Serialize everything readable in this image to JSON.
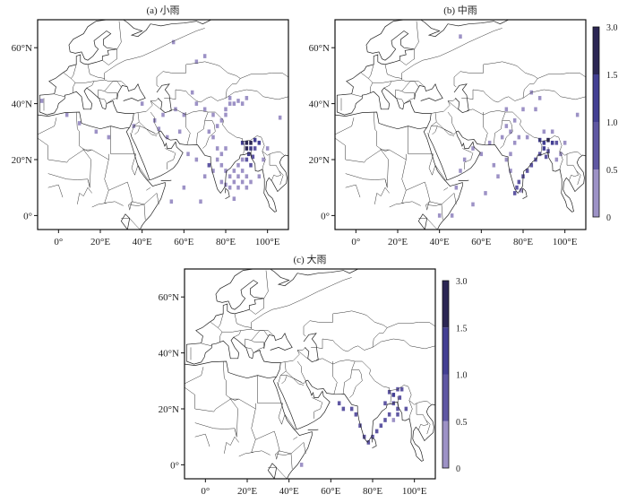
{
  "colorbar": {
    "bounds": [
      0,
      0.5,
      1.0,
      1.5,
      3.0
    ],
    "labels": [
      "0",
      "0.5",
      "1.0",
      "1.5",
      "3.0"
    ],
    "colors": [
      "#9d92c6",
      "#5f57a3",
      "#433f93",
      "#2b2654"
    ]
  },
  "axes": {
    "lon_range": [
      -10,
      110
    ],
    "lat_range": [
      -5,
      70
    ],
    "x_ticks": [
      0,
      20,
      40,
      60,
      80,
      100
    ],
    "x_tick_labels": [
      "0°",
      "20°E",
      "40°E",
      "60°E",
      "80°E",
      "100°E"
    ],
    "y_ticks": [
      0,
      20,
      40,
      60
    ],
    "y_tick_labels": [
      "0°",
      "20°N",
      "40°N",
      "60°N"
    ]
  },
  "panels": [
    {
      "title": "(a) 小雨",
      "cells": [
        [
          88,
          26,
          2
        ],
        [
          90,
          26,
          3
        ],
        [
          92,
          26,
          3
        ],
        [
          94,
          27,
          2
        ],
        [
          96,
          26,
          2
        ],
        [
          90,
          24,
          3
        ],
        [
          92,
          24,
          2
        ],
        [
          94,
          24,
          1
        ],
        [
          91,
          22,
          2
        ],
        [
          93,
          21,
          1
        ],
        [
          90,
          20,
          1
        ],
        [
          92,
          18,
          1
        ],
        [
          88,
          20,
          0
        ],
        [
          86,
          18,
          0
        ],
        [
          84,
          16,
          0
        ],
        [
          86,
          14,
          0
        ],
        [
          88,
          16,
          0
        ],
        [
          90,
          14,
          0
        ],
        [
          84,
          12,
          0
        ],
        [
          82,
          10,
          0
        ],
        [
          80,
          11,
          0
        ],
        [
          78,
          12,
          0
        ],
        [
          86,
          10,
          0
        ],
        [
          88,
          12,
          0
        ],
        [
          90,
          10,
          0
        ],
        [
          92,
          12,
          0
        ],
        [
          82,
          14,
          0
        ],
        [
          80,
          16,
          0
        ],
        [
          78,
          18,
          0
        ],
        [
          76,
          20,
          0
        ],
        [
          74,
          16,
          0
        ],
        [
          72,
          18,
          1
        ],
        [
          70,
          14,
          0
        ],
        [
          66,
          20,
          0
        ],
        [
          62,
          22,
          0
        ],
        [
          78,
          22,
          0
        ],
        [
          80,
          24,
          0
        ],
        [
          76,
          24,
          0
        ],
        [
          74,
          28,
          0
        ],
        [
          72,
          30,
          0
        ],
        [
          76,
          32,
          0
        ],
        [
          78,
          34,
          0
        ],
        [
          74,
          36,
          0
        ],
        [
          80,
          38,
          0
        ],
        [
          82,
          40,
          0
        ],
        [
          84,
          40,
          0
        ],
        [
          86,
          41,
          0
        ],
        [
          82,
          42,
          0
        ],
        [
          80,
          36,
          0
        ],
        [
          88,
          40,
          0
        ],
        [
          90,
          42,
          0
        ],
        [
          70,
          38,
          0
        ],
        [
          66,
          40,
          0
        ],
        [
          60,
          36,
          0
        ],
        [
          56,
          38,
          0
        ],
        [
          50,
          36,
          0
        ],
        [
          46,
          34,
          0
        ],
        [
          40,
          40,
          0
        ],
        [
          36,
          32,
          0
        ],
        [
          24,
          28,
          0
        ],
        [
          18,
          30,
          0
        ],
        [
          10,
          33,
          0
        ],
        [
          4,
          36,
          0
        ],
        [
          -8,
          41,
          0
        ],
        [
          55,
          62,
          0
        ],
        [
          66,
          55,
          0
        ],
        [
          70,
          57,
          0
        ],
        [
          64,
          44,
          0
        ],
        [
          58,
          30,
          0
        ],
        [
          52,
          28,
          0
        ],
        [
          48,
          31,
          0
        ],
        [
          60,
          10,
          0
        ],
        [
          54,
          5,
          0
        ],
        [
          68,
          5,
          0
        ],
        [
          106,
          35,
          0
        ],
        [
          100,
          24,
          0
        ],
        [
          98,
          20,
          0
        ],
        [
          96,
          14,
          0
        ],
        [
          84,
          6,
          0
        ]
      ]
    },
    {
      "title": "(b) 中雨",
      "cells": [
        [
          88,
          27,
          2
        ],
        [
          90,
          26,
          2
        ],
        [
          92,
          27,
          3
        ],
        [
          94,
          26,
          2
        ],
        [
          96,
          26,
          1
        ],
        [
          90,
          24,
          2
        ],
        [
          92,
          23,
          1
        ],
        [
          91,
          21,
          1
        ],
        [
          88,
          22,
          1
        ],
        [
          86,
          20,
          1
        ],
        [
          84,
          18,
          1
        ],
        [
          82,
          16,
          1
        ],
        [
          80,
          14,
          1
        ],
        [
          78,
          12,
          1
        ],
        [
          77,
          10,
          1
        ],
        [
          76,
          8,
          1
        ],
        [
          79,
          9,
          0
        ],
        [
          74,
          16,
          0
        ],
        [
          72,
          20,
          0
        ],
        [
          74,
          22,
          0
        ],
        [
          76,
          26,
          0
        ],
        [
          78,
          28,
          0
        ],
        [
          74,
          30,
          0
        ],
        [
          72,
          32,
          0
        ],
        [
          76,
          34,
          0
        ],
        [
          80,
          38,
          0
        ],
        [
          86,
          38,
          0
        ],
        [
          88,
          42,
          0
        ],
        [
          84,
          44,
          0
        ],
        [
          72,
          38,
          0
        ],
        [
          70,
          28,
          0
        ],
        [
          64,
          26,
          0
        ],
        [
          60,
          22,
          0
        ],
        [
          56,
          24,
          0
        ],
        [
          52,
          20,
          0
        ],
        [
          50,
          16,
          0
        ],
        [
          48,
          10,
          0
        ],
        [
          46,
          0,
          0
        ],
        [
          40,
          0,
          0
        ],
        [
          62,
          8,
          0
        ],
        [
          56,
          4,
          0
        ],
        [
          68,
          14,
          0
        ],
        [
          66,
          18,
          0
        ],
        [
          96,
          20,
          0
        ],
        [
          98,
          22,
          0
        ],
        [
          100,
          26,
          0
        ],
        [
          106,
          36,
          0
        ],
        [
          94,
          30,
          0
        ],
        [
          90,
          30,
          0
        ],
        [
          82,
          28,
          0
        ],
        [
          50,
          64,
          0
        ]
      ]
    },
    {
      "title": "(c) 大雨",
      "cells": [
        [
          88,
          26,
          1
        ],
        [
          90,
          25,
          2
        ],
        [
          92,
          27,
          1
        ],
        [
          94,
          27,
          1
        ],
        [
          93,
          24,
          1
        ],
        [
          90,
          22,
          1
        ],
        [
          92,
          20,
          1
        ],
        [
          88,
          18,
          1
        ],
        [
          86,
          16,
          1
        ],
        [
          84,
          14,
          1
        ],
        [
          82,
          12,
          1
        ],
        [
          80,
          10,
          1
        ],
        [
          78,
          8,
          1
        ],
        [
          76,
          10,
          1
        ],
        [
          74,
          14,
          1
        ],
        [
          72,
          18,
          1
        ],
        [
          70,
          20,
          1
        ],
        [
          66,
          20,
          1
        ],
        [
          64,
          22,
          1
        ],
        [
          86,
          22,
          1
        ],
        [
          92,
          18,
          1
        ],
        [
          90,
          16,
          0
        ],
        [
          96,
          20,
          1
        ],
        [
          46,
          0,
          0
        ]
      ]
    }
  ]
}
